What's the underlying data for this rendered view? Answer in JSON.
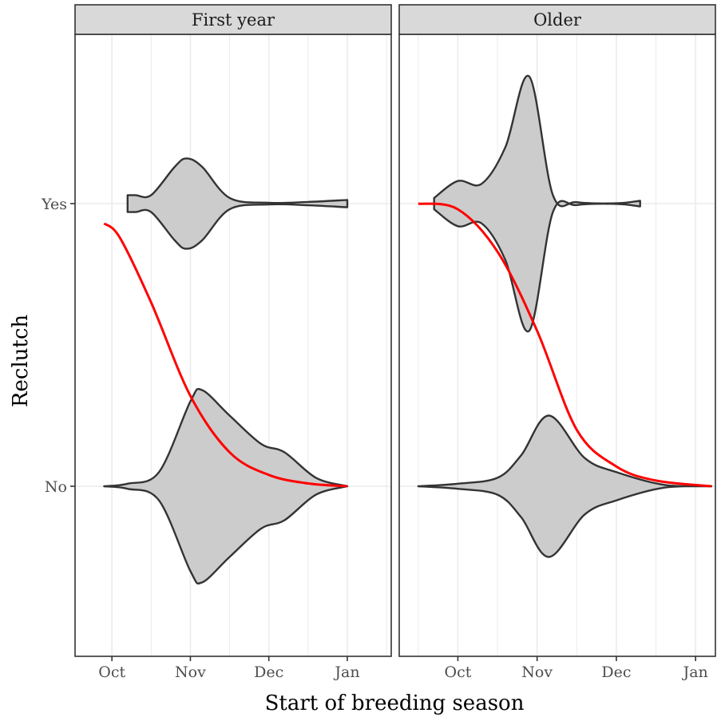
{
  "chart_data": {
    "type": "violin",
    "title": "",
    "xlabel": "Start of breeding season",
    "ylabel": "Reclutch",
    "x_ticks": [
      "Oct",
      "Nov",
      "Dec",
      "Jan"
    ],
    "y_categories": [
      "No",
      "Yes"
    ],
    "grid": true,
    "colors": {
      "violin_fill": "#cccccc",
      "violin_stroke": "#333333",
      "fit_line": "#ff0000",
      "strip_bg": "#d9d9d9",
      "grid": "#ebebeb"
    },
    "panels": [
      {
        "strip": "First year",
        "xlim": [
          -0.47,
          3.56
        ],
        "violins": [
          {
            "category": "Yes",
            "x": [
              0.2,
              0.3,
              0.5,
              0.8,
              0.95,
              1.15,
              1.5,
              2.0,
              2.5,
              3.0
            ],
            "half_width": [
              0.03,
              0.03,
              0.03,
              0.13,
              0.16,
              0.13,
              0.02,
              0.003,
              0.006,
              0.013
            ]
          },
          {
            "category": "No",
            "x": [
              -0.1,
              0.2,
              0.6,
              1.0,
              1.15,
              1.5,
              1.9,
              2.2,
              2.6,
              3.0
            ],
            "half_width": [
              0.0,
              0.009,
              0.05,
              0.3,
              0.34,
              0.25,
              0.15,
              0.12,
              0.03,
              0.0
            ]
          }
        ],
        "fit_line": {
          "x": [
            -0.1,
            0.1,
            0.5,
            1.0,
            1.5,
            2.0,
            2.5,
            3.0
          ],
          "p": [
            0.93,
            0.88,
            0.65,
            0.32,
            0.12,
            0.04,
            0.01,
            0.0
          ]
        }
      },
      {
        "strip": "Older",
        "xlim": [
          -0.74,
          3.25
        ],
        "violins": [
          {
            "category": "Yes",
            "x": [
              -0.3,
              0.0,
              0.3,
              0.6,
              0.9,
              1.2,
              1.5,
              2.0,
              2.3
            ],
            "half_width": [
              0.02,
              0.08,
              0.07,
              0.2,
              0.45,
              0.03,
              0.005,
              0.001,
              0.01
            ]
          },
          {
            "category": "No",
            "x": [
              -0.5,
              0.0,
              0.5,
              0.8,
              1.15,
              1.6,
              2.0,
              2.6,
              3.2
            ],
            "half_width": [
              0.0,
              0.009,
              0.03,
              0.11,
              0.25,
              0.1,
              0.05,
              0.005,
              0.0
            ]
          }
        ],
        "fit_line": {
          "x": [
            -0.5,
            0.0,
            0.5,
            1.0,
            1.5,
            2.0,
            2.5,
            3.2
          ],
          "p": [
            1.0,
            0.98,
            0.83,
            0.55,
            0.2,
            0.07,
            0.02,
            0.0
          ]
        }
      }
    ]
  }
}
